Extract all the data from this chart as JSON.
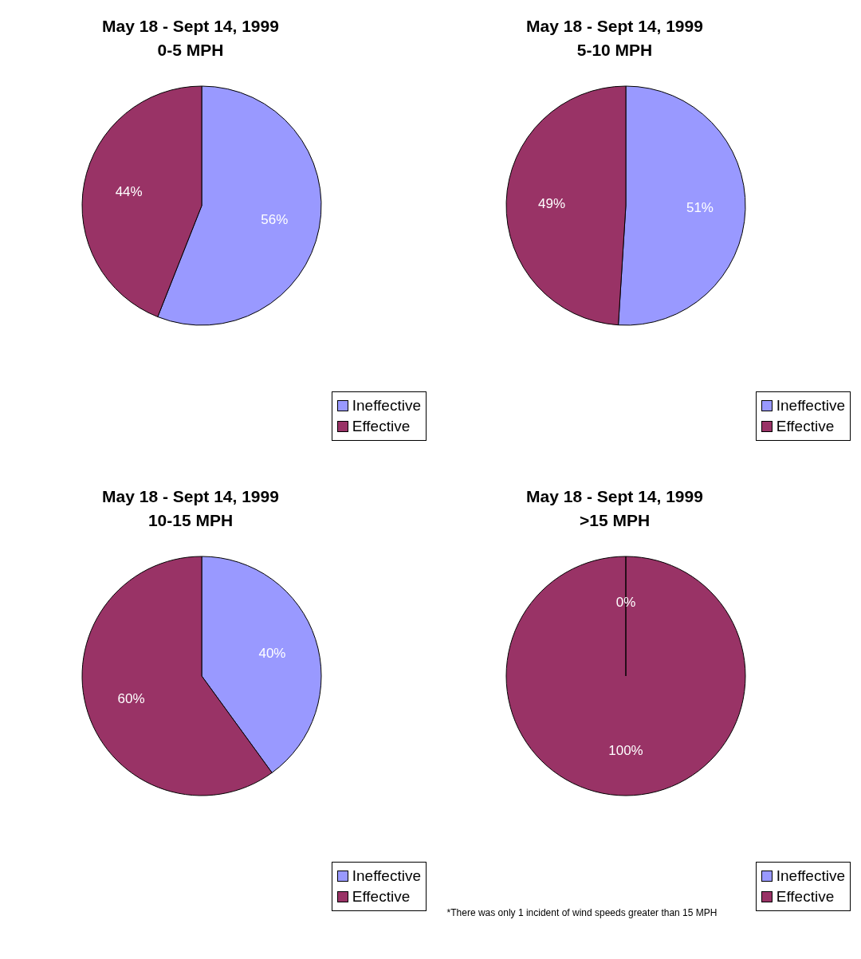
{
  "chart_data": [
    {
      "type": "pie",
      "title": "May 18 - Sept 14, 1999",
      "subtitle": "0-5 MPH",
      "categories": [
        "Ineffective",
        "Effective"
      ],
      "values": [
        56,
        44
      ],
      "value_labels": [
        "56%",
        "44%"
      ],
      "colors": [
        "#9999ff",
        "#993366"
      ],
      "legend": "bottom right"
    },
    {
      "type": "pie",
      "title": "May 18 - Sept 14, 1999",
      "subtitle": "5-10 MPH",
      "categories": [
        "Ineffective",
        "Effective"
      ],
      "values": [
        51,
        49
      ],
      "value_labels": [
        "51%",
        "49%"
      ],
      "colors": [
        "#9999ff",
        "#993366"
      ],
      "legend": "bottom right"
    },
    {
      "type": "pie",
      "title": "May 18 - Sept 14, 1999",
      "subtitle": "10-15 MPH",
      "categories": [
        "Ineffective",
        "Effective"
      ],
      "values": [
        40,
        60
      ],
      "value_labels": [
        "40%",
        "60%"
      ],
      "colors": [
        "#9999ff",
        "#993366"
      ],
      "legend": "bottom right"
    },
    {
      "type": "pie",
      "title": "May 18 - Sept 14, 1999",
      "subtitle": ">15 MPH",
      "categories": [
        "Ineffective",
        "Effective"
      ],
      "values": [
        0,
        100
      ],
      "value_labels": [
        "0%",
        "100%"
      ],
      "colors": [
        "#9999ff",
        "#993366"
      ],
      "legend": "bottom right",
      "annotations": [
        "*There was only 1 incident of wind speeds greater than 15 MPH"
      ]
    }
  ]
}
